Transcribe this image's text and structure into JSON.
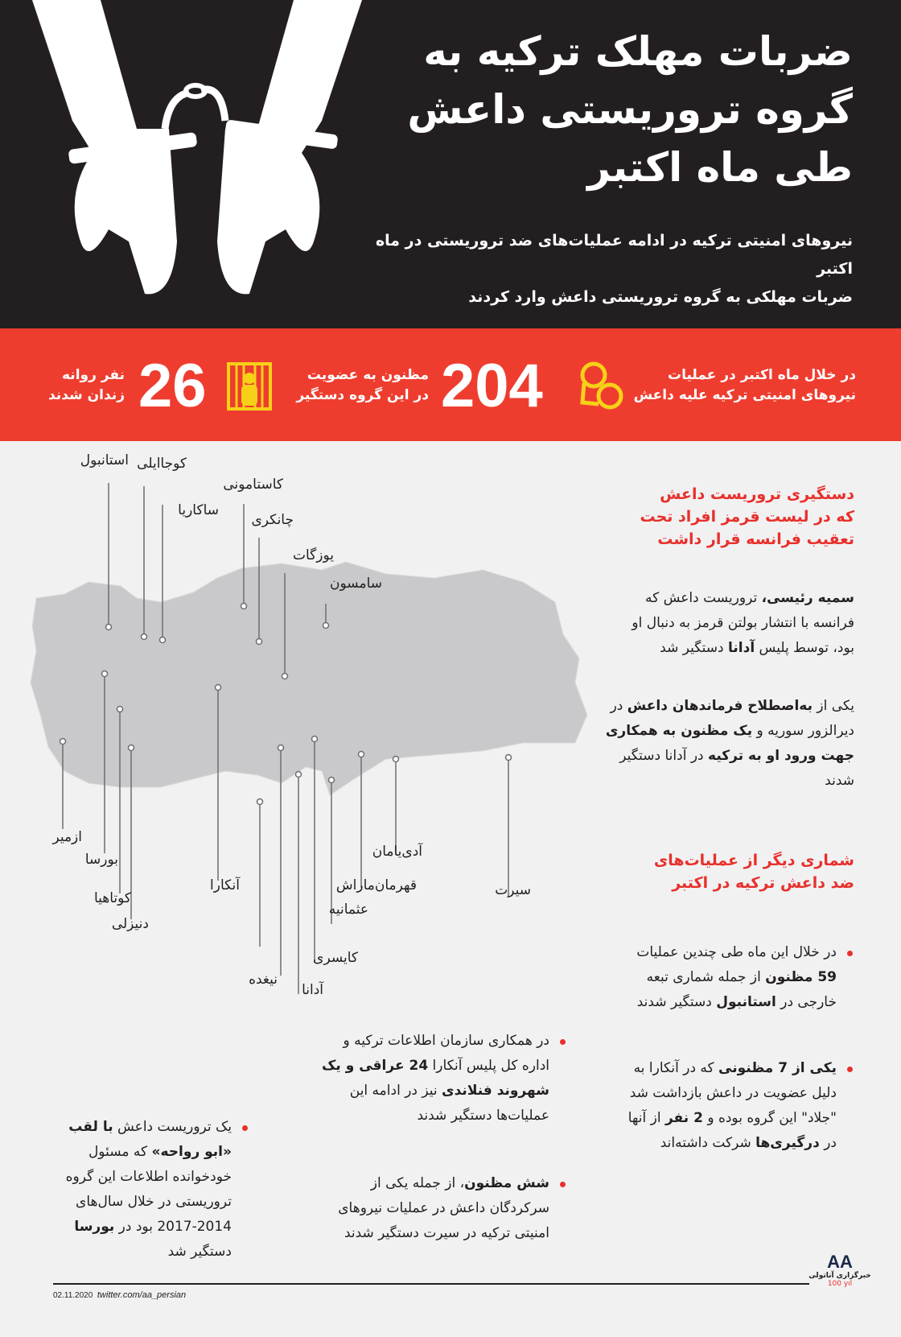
{
  "header": {
    "title_lines": [
      "ضربات مهلک ترکیه به",
      "گروه تروریستی داعش",
      "طی ماه اکتبر"
    ],
    "subtitle_lines": [
      "نیروهای امنیتی ترکیه در ادامه عملیات‌های ضد تروریستی در ماه اکتبر",
      "ضربات مهلکی به گروه تروریستی داعش وارد کردند"
    ]
  },
  "stats": {
    "intro_lines": [
      "در خلال ماه اکتبر در عملیات",
      "نیروهای امنیتی ترکیه علیه داعش"
    ],
    "suspects_count": "204",
    "suspects_lines": [
      "مظنون به عضویت",
      "در این گروه دستگیر"
    ],
    "jailed_count": "26",
    "jailed_lines": [
      "نفر روانه",
      "زندان شدند"
    ],
    "icon_color": "#f7d117",
    "band_color": "#ee3d2f"
  },
  "map": {
    "cities": [
      "استانبول",
      "کوجاایلی",
      "ساکاریا",
      "کاستامونی",
      "چانکری",
      "یوزگات",
      "سامسون",
      "ازمیر",
      "بورسا",
      "کوتاهیا",
      "دنیزلی",
      "آنکارا",
      "نیغده",
      "آدانا",
      "کایسری",
      "عثمانیه",
      "قهرمان‌ماراش",
      "آدی‌یامان",
      "سیرت"
    ]
  },
  "section1": {
    "heading_lines": [
      "دستگیری تروریست داعش",
      "که در لیست قرمز افراد تحت",
      "تعقیب فرانسه قرار داشت"
    ],
    "para1": {
      "b1": "سمیه رئیسی،",
      "t1": " تروریست داعش که فرانسه با انتشار بولتن قرمز به دنبال او بود، توسط پلیس ",
      "b2": "آدانا",
      "t2": " دستگیر شد"
    },
    "para2": {
      "t0": "یکی از ",
      "b1": "به‌اصطلاح فرماندهان داعش",
      "t1": " در دیرالزور سوریه و ",
      "b2": "یک مظنون به همکاری جهت ورود او به ترکیه",
      "t2": " در آدانا دستگیر شدند"
    }
  },
  "section2": {
    "heading_lines": [
      "شماری دیگر از عملیات‌های",
      "ضد داعش ترکیه در اکتبر"
    ],
    "bullets": [
      {
        "t0": "در خلال این ماه طی چندین عملیات ",
        "b1": "59 مظنون",
        "t1": " از جمله شماری تبعه خارجی در ",
        "b2": "استانبول",
        "t2": " دستگیر شدند"
      },
      {
        "t0": "",
        "b1": "یکی از 7 مظنونی",
        "t1": " که در آنکارا به دلیل عضویت در داعش بازداشت شد \"جلاد\" این گروه بوده و ",
        "b2": "2 نفر",
        "t2": " از آنها در ",
        "b3": "درگیری‌ها",
        "t3": " شرکت داشته‌اند"
      },
      {
        "t0": "در همکاری سازمان اطلاعات ترکیه و اداره کل پلیس آنکارا ",
        "b1": "24 عراقی و یک شهروند فنلاندی",
        "t1": " نیز در ادامه این عملیات‌ها دستگیر شدند"
      },
      {
        "t0": "",
        "b1": "شش مظنون",
        "t1": "، از جمله یکی از سرکردگان داعش در عملیات نیروهای امنیتی ترکیه در سیرت دستگیر شدند"
      },
      {
        "t0": "یک تروریست داعش ",
        "b1": "با لقب «ابو رواحه»",
        "t1": " که مسئول خودخوانده اطلاعات این گروه تروریستی در خلال سال‌های 2014-2017 بود در ",
        "b2": "بورسا",
        "t2": " دستگیر شد"
      }
    ]
  },
  "footer": {
    "date": "02.11.2020",
    "link": "twitter.com/aa_persian",
    "logo_text": "خبرگزاری آناتولی",
    "logo_mark": "AA",
    "logo_badge": "100 yıl"
  }
}
